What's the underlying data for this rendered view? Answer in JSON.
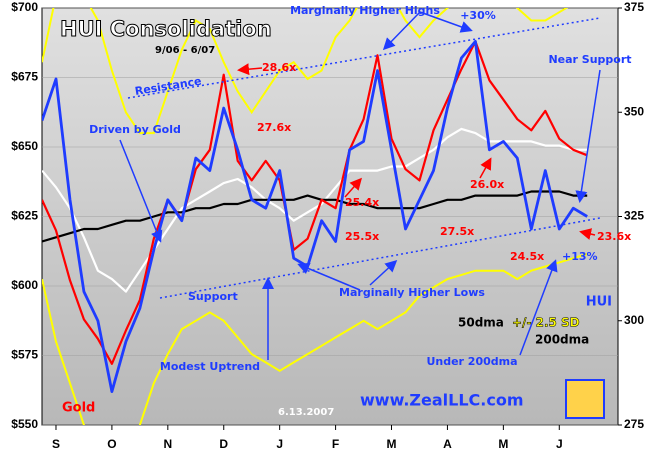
{
  "chart_data": {
    "type": "line",
    "title": "HUI Consolidation",
    "subtitle": "9/06 - 6/07",
    "x": [
      0,
      0.25,
      0.5,
      0.75,
      1,
      1.25,
      1.5,
      1.75,
      2,
      2.25,
      2.5,
      2.75,
      3,
      3.25,
      3.5,
      3.75,
      4,
      4.25,
      4.5,
      4.75,
      5,
      5.25,
      5.5,
      5.75,
      6,
      6.25,
      6.5,
      6.75,
      7,
      7.25,
      7.5,
      7.75,
      8,
      8.25,
      8.5,
      8.75,
      9,
      9.25,
      9.5,
      9.75
    ],
    "xlim": [
      0,
      10.3
    ],
    "xticks": [
      {
        "value": 0.25,
        "label": "S"
      },
      {
        "value": 1.25,
        "label": "O"
      },
      {
        "value": 2.25,
        "label": "N"
      },
      {
        "value": 3.25,
        "label": "D"
      },
      {
        "value": 4.25,
        "label": "J"
      },
      {
        "value": 5.25,
        "label": "F"
      },
      {
        "value": 6.25,
        "label": "M"
      },
      {
        "value": 7.25,
        "label": "A"
      },
      {
        "value": 8.25,
        "label": "M"
      },
      {
        "value": 9.25,
        "label": "J"
      }
    ],
    "ylim": [
      550,
      700
    ],
    "yticks": [
      {
        "value": 550,
        "label": "$550"
      },
      {
        "value": 575,
        "label": "$575"
      },
      {
        "value": 600,
        "label": "$600"
      },
      {
        "value": 625,
        "label": "$625"
      },
      {
        "value": 650,
        "label": "$650"
      },
      {
        "value": 675,
        "label": "$675"
      },
      {
        "value": 700,
        "label": "$700"
      }
    ],
    "y2lim": [
      275,
      375
    ],
    "y2ticks": [
      275,
      300,
      325,
      350,
      375
    ],
    "grid": true,
    "band": {
      "name": "+/- 2.5 SD",
      "color": "#ffff00",
      "axis": "y2",
      "upper": [
        362,
        378,
        380,
        378,
        372,
        360,
        350,
        345,
        345,
        355,
        365,
        372,
        370,
        362,
        355,
        350,
        355,
        360,
        362,
        358,
        360,
        368,
        372,
        378,
        380,
        378,
        372,
        368,
        372,
        375,
        378,
        380,
        380,
        378,
        375,
        372,
        372,
        374,
        376,
        378
      ],
      "lower": [
        310,
        295,
        285,
        275,
        265,
        262,
        265,
        275,
        285,
        292,
        298,
        300,
        302,
        300,
        296,
        292,
        290,
        288,
        290,
        292,
        294,
        296,
        298,
        300,
        298,
        300,
        302,
        306,
        308,
        310,
        311,
        312,
        312,
        312,
        310,
        312,
        313,
        314,
        315,
        316
      ]
    },
    "series": [
      {
        "name": "50dma",
        "color": "#ffffff",
        "axis": "y2",
        "values": [
          336,
          332,
          327,
          320,
          312,
          310,
          307,
          312,
          317,
          322,
          327,
          329,
          331,
          333,
          334,
          332,
          329,
          327,
          324,
          326,
          328,
          332,
          336,
          336,
          336,
          337,
          337,
          339,
          341,
          344,
          346,
          345,
          343,
          343,
          343,
          343,
          342,
          342,
          341,
          341
        ]
      },
      {
        "name": "200dma",
        "color": "#000000",
        "axis": "y2",
        "values": [
          319,
          320,
          321,
          322,
          322,
          323,
          324,
          324,
          325,
          326,
          326,
          327,
          327,
          328,
          328,
          329,
          329,
          329,
          329,
          330,
          329,
          329,
          328,
          328,
          327,
          327,
          327,
          327,
          328,
          329,
          329,
          330,
          330,
          330,
          330,
          331,
          331,
          331,
          330,
          330
        ]
      },
      {
        "name": "Gold",
        "color": "#ff0000",
        "values": [
          631,
          620,
          602,
          588,
          581,
          572,
          584,
          595,
          617,
          631,
          624,
          642,
          649,
          676,
          645,
          638,
          645,
          638,
          613,
          617,
          631,
          628,
          649,
          660,
          683,
          653,
          642,
          638,
          656,
          667,
          678,
          688,
          674,
          667,
          660,
          656,
          663,
          653,
          649,
          647
        ]
      },
      {
        "name": "HUI",
        "color": "#1f3cff",
        "axis": "y2",
        "values": [
          348,
          358,
          329,
          307,
          300,
          283,
          295,
          303,
          317,
          329,
          324,
          339,
          336,
          351,
          341,
          329,
          327,
          336,
          315,
          313,
          324,
          319,
          341,
          343,
          360,
          341,
          322,
          329,
          336,
          351,
          363,
          367,
          341,
          343,
          339,
          322,
          336,
          322,
          327,
          325
        ]
      }
    ],
    "annotations": [
      "Marginally Higher Highs",
      "+30%",
      "Resistance",
      "28.6x",
      "Near Support",
      "Driven by Gold",
      "27.6x",
      "25.4x",
      "26.0x",
      "25.5x",
      "27.5x",
      "24.5x",
      "+13%",
      "23.6x",
      "Support",
      "Marginally Higher Lows",
      "Modest Uptrend",
      "Under 200dma",
      "HUI",
      "+/- 2.5 SD",
      "6.13.2007",
      "www.ZealLLC.com"
    ]
  }
}
